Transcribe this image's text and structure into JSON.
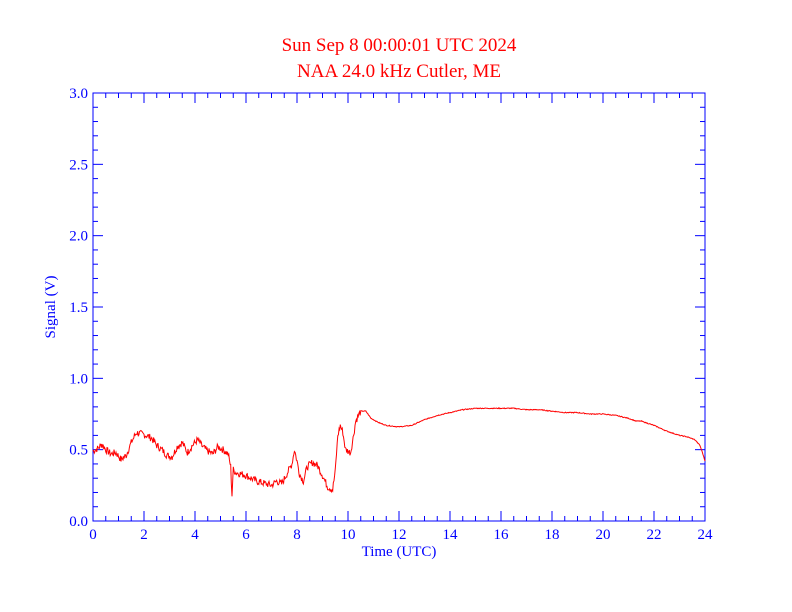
{
  "chart_data": {
    "type": "line",
    "title": "Sun Sep 8 00:00:01 UTC 2024",
    "subtitle": "NAA 24.0 kHz Cutler, ME",
    "xlabel": "Time (UTC)",
    "ylabel": "Signal (V)",
    "xlim": [
      0,
      24
    ],
    "ylim": [
      0.0,
      3.0
    ],
    "xticks": [
      0,
      2,
      4,
      6,
      8,
      10,
      12,
      14,
      16,
      18,
      20,
      22,
      24
    ],
    "xtick_labels": [
      "0",
      "2",
      "4",
      "6",
      "8",
      "10",
      "12",
      "14",
      "16",
      "18",
      "20",
      "22",
      "24"
    ],
    "yticks": [
      0.0,
      0.5,
      1.0,
      1.5,
      2.0,
      2.5,
      3.0
    ],
    "ytick_labels": [
      "0.0",
      "0.5",
      "1.0",
      "1.5",
      "2.0",
      "2.5",
      "3.0"
    ],
    "grid": false,
    "colors": {
      "axis": "#0000ff",
      "title": "#ff0000",
      "line": "#ff0000"
    },
    "series": [
      {
        "x": [
          0.0,
          0.2,
          0.35,
          0.5,
          0.7,
          0.9,
          1.1,
          1.3,
          1.5,
          1.7,
          1.9,
          2.1,
          2.3,
          2.5,
          2.7,
          2.9,
          3.1,
          3.3,
          3.5,
          3.7,
          3.9,
          4.1,
          4.3,
          4.5,
          4.7,
          4.9,
          5.1,
          5.3,
          5.4,
          5.45,
          5.5,
          5.6,
          5.8,
          6.0,
          6.2,
          6.4,
          6.6,
          6.8,
          7.0,
          7.2,
          7.4,
          7.6,
          7.8,
          7.9,
          8.0,
          8.1,
          8.25,
          8.4,
          8.6,
          8.8,
          9.0,
          9.2,
          9.4,
          9.5,
          9.6,
          9.7,
          9.8,
          9.9,
          10.1,
          10.2,
          10.3,
          10.5,
          10.7,
          10.9,
          11.2,
          11.5,
          12.0,
          12.5,
          13.0,
          13.5,
          14.0,
          14.5,
          15.0,
          15.5,
          16.0,
          16.5,
          17.0,
          17.5,
          18.0,
          18.5,
          19.0,
          19.5,
          20.0,
          20.5,
          21.0,
          21.3,
          21.5,
          22.0,
          22.5,
          23.0,
          23.3,
          23.6,
          23.8,
          23.9,
          24.0
        ],
        "y": [
          0.49,
          0.51,
          0.54,
          0.5,
          0.47,
          0.48,
          0.43,
          0.46,
          0.55,
          0.62,
          0.61,
          0.6,
          0.58,
          0.53,
          0.5,
          0.46,
          0.45,
          0.52,
          0.55,
          0.48,
          0.53,
          0.57,
          0.52,
          0.49,
          0.47,
          0.52,
          0.5,
          0.47,
          0.38,
          0.18,
          0.36,
          0.34,
          0.33,
          0.32,
          0.3,
          0.28,
          0.27,
          0.26,
          0.25,
          0.28,
          0.26,
          0.33,
          0.4,
          0.5,
          0.42,
          0.33,
          0.28,
          0.38,
          0.41,
          0.39,
          0.32,
          0.24,
          0.22,
          0.35,
          0.6,
          0.67,
          0.62,
          0.5,
          0.48,
          0.58,
          0.7,
          0.77,
          0.77,
          0.72,
          0.69,
          0.67,
          0.66,
          0.67,
          0.71,
          0.74,
          0.76,
          0.78,
          0.79,
          0.79,
          0.79,
          0.79,
          0.78,
          0.78,
          0.77,
          0.76,
          0.76,
          0.75,
          0.75,
          0.74,
          0.72,
          0.7,
          0.7,
          0.67,
          0.63,
          0.6,
          0.59,
          0.57,
          0.53,
          0.48,
          0.42
        ]
      }
    ]
  }
}
